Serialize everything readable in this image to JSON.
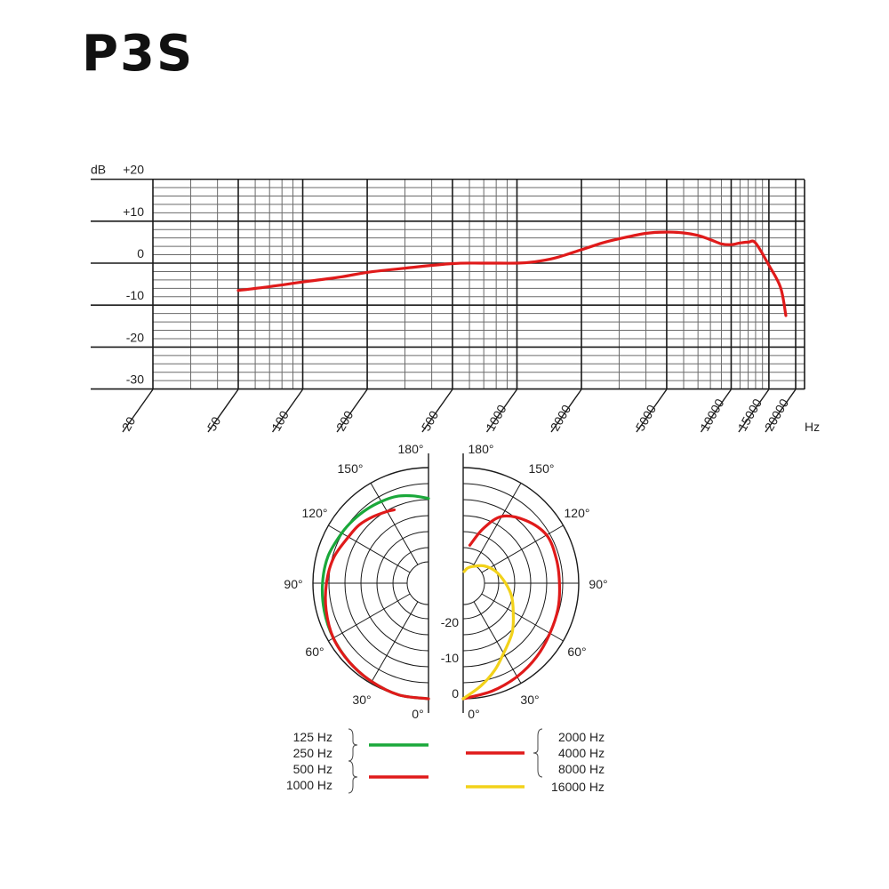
{
  "title": "P3S",
  "colors": {
    "frame": "#1a1a1a",
    "grid_fine": "#6a6a6a",
    "response": "#e01a1a",
    "polar_green": "#1aa83a",
    "polar_red": "#e01a1a",
    "polar_yellow": "#f2d21a"
  },
  "chart_data": [
    {
      "type": "line",
      "chart": "frequency-response",
      "ylabel": "dB",
      "xlabel": "Hz",
      "x_scale": "log",
      "xlim": [
        20,
        20000
      ],
      "ylim": [
        -30,
        20
      ],
      "grid": true,
      "y_ticks": [
        {
          "value": 20,
          "label": "+20"
        },
        {
          "value": 10,
          "label": "+10"
        },
        {
          "value": 0,
          "label": "0"
        },
        {
          "value": -10,
          "label": "-10"
        },
        {
          "value": -20,
          "label": "-20"
        },
        {
          "value": -30,
          "label": "-30"
        }
      ],
      "x_ticks": [
        {
          "value": 20,
          "label": "20"
        },
        {
          "value": 50,
          "label": "50"
        },
        {
          "value": 100,
          "label": "100"
        },
        {
          "value": 200,
          "label": "200"
        },
        {
          "value": 500,
          "label": "500"
        },
        {
          "value": 1000,
          "label": "1000"
        },
        {
          "value": 2000,
          "label": "2000"
        },
        {
          "value": 5000,
          "label": "5000"
        },
        {
          "value": 10000,
          "label": "10000"
        },
        {
          "value": 15000,
          "label": "15000"
        },
        {
          "value": 20000,
          "label": "20000"
        }
      ],
      "series": [
        {
          "color": "#e01a1a",
          "x": [
            50,
            70,
            100,
            150,
            200,
            300,
            500,
            700,
            1000,
            1200,
            1500,
            2000,
            2500,
            3000,
            4000,
            5000,
            6000,
            7000,
            8000,
            9000,
            10000,
            11000,
            12000,
            13000,
            15000,
            17000,
            18000
          ],
          "y": [
            -6.5,
            -5.6,
            -4.5,
            -3.3,
            -2.2,
            -1.2,
            -0.1,
            0,
            0,
            0.3,
            1.2,
            3.2,
            4.8,
            5.8,
            7.1,
            7.4,
            7.2,
            6.6,
            5.6,
            4.6,
            4.4,
            4.8,
            5.0,
            4.8,
            -0.5,
            -5.8,
            -12.5
          ]
        }
      ]
    },
    {
      "type": "polar",
      "chart": "polar-pattern",
      "rlim": [
        -30,
        0
      ],
      "angle_labels_left": [
        "180°",
        "150°",
        "120°",
        "90°",
        "60°",
        "30°",
        "0°"
      ],
      "angle_labels_right": [
        "180°",
        "150°",
        "120°",
        "90°",
        "60°",
        "30°",
        "0°"
      ],
      "angle_values": [
        180,
        150,
        120,
        90,
        60,
        30,
        0
      ],
      "radial_labels": [
        {
          "value": -20,
          "label": "-20"
        },
        {
          "value": -10,
          "label": "-10"
        },
        {
          "value": 0,
          "label": "0"
        }
      ],
      "series": [
        {
          "side": "left",
          "color": "#1aa83a",
          "theta": [
            0,
            15,
            30,
            45,
            60,
            75,
            90,
            105,
            120,
            130,
            140,
            150,
            160,
            170,
            180
          ],
          "r": [
            0,
            0,
            -0.5,
            -1,
            -1.5,
            -2,
            -2.5,
            -3,
            -4,
            -4.5,
            -5,
            -5.5,
            -6,
            -7,
            -8
          ]
        },
        {
          "side": "left",
          "color": "#e01a1a",
          "theta": [
            0,
            15,
            30,
            45,
            60,
            75,
            90,
            105,
            120,
            130,
            140,
            150,
            155
          ],
          "r": [
            0,
            0,
            -0.5,
            -1,
            -1.5,
            -2.5,
            -3.5,
            -4.5,
            -6,
            -6.5,
            -7.5,
            -8.5,
            -9
          ]
        },
        {
          "side": "right",
          "color": "#e01a1a",
          "theta": [
            0,
            15,
            30,
            45,
            60,
            75,
            90,
            105,
            120,
            135,
            150,
            160,
            170
          ],
          "r": [
            0,
            -1,
            -2,
            -3,
            -4,
            -4.5,
            -5,
            -5,
            -5,
            -7,
            -10,
            -15,
            -20
          ]
        },
        {
          "side": "right",
          "color": "#f2d21a",
          "theta": [
            0,
            10,
            20,
            30,
            45,
            60,
            75,
            90,
            110,
            130,
            150,
            165,
            175
          ],
          "r": [
            0,
            -3,
            -6,
            -9,
            -12,
            -15,
            -17,
            -19,
            -21,
            -23,
            -25,
            -26,
            -27
          ]
        }
      ],
      "legend": [
        {
          "bracket": true,
          "labels": [
            "125 Hz",
            "250 Hz"
          ],
          "color": "#1aa83a",
          "side": "left"
        },
        {
          "bracket": true,
          "labels": [
            "500 Hz",
            "1000 Hz"
          ],
          "color": "#e01a1a",
          "side": "left"
        },
        {
          "bracket": true,
          "labels": [
            "2000 Hz",
            "4000 Hz",
            "8000 Hz"
          ],
          "color": "#e01a1a",
          "side": "right"
        },
        {
          "bracket": false,
          "labels": [
            "16000 Hz"
          ],
          "color": "#f2d21a",
          "side": "right"
        }
      ]
    }
  ]
}
